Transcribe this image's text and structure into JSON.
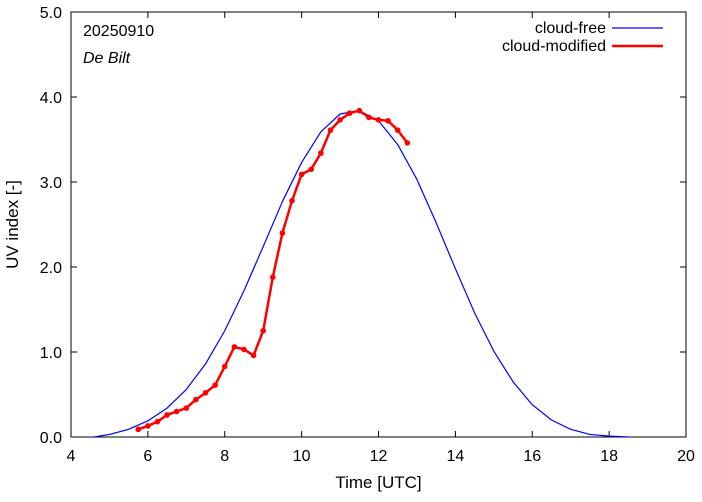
{
  "chart_data": {
    "type": "line",
    "annotation_date": "20250910",
    "annotation_location": "De Bilt",
    "xlabel": "Time  [UTC]",
    "ylabel": "UV index  [-]",
    "xlim": [
      4,
      20
    ],
    "ylim": [
      0.0,
      5.0
    ],
    "x_ticks": [
      4,
      6,
      8,
      10,
      12,
      14,
      16,
      18,
      20
    ],
    "x_tick_labels": [
      "4",
      "6",
      "8",
      "10",
      "12",
      "14",
      "16",
      "18",
      "20"
    ],
    "y_ticks": [
      0,
      1,
      2,
      3,
      4,
      5
    ],
    "y_tick_labels": [
      "0.0",
      "1.0",
      "2.0",
      "3.0",
      "4.0",
      "5.0"
    ],
    "grid": false,
    "legend_position": "top-right",
    "series": [
      {
        "name": "cloud-free",
        "color": "#0000ff",
        "markers": false,
        "x": [
          4.6,
          5.0,
          5.5,
          6.0,
          6.5,
          7.0,
          7.5,
          8.0,
          8.5,
          9.0,
          9.5,
          10.0,
          10.5,
          11.0,
          11.5,
          12.0,
          12.5,
          13.0,
          13.5,
          14.0,
          14.5,
          15.0,
          15.5,
          16.0,
          16.5,
          17.0,
          17.5,
          18.0,
          18.5
        ],
        "y": [
          0.0,
          0.03,
          0.09,
          0.19,
          0.34,
          0.56,
          0.86,
          1.25,
          1.72,
          2.24,
          2.77,
          3.23,
          3.59,
          3.8,
          3.84,
          3.72,
          3.44,
          3.03,
          2.52,
          1.98,
          1.46,
          1.01,
          0.65,
          0.38,
          0.2,
          0.09,
          0.03,
          0.01,
          0.0
        ]
      },
      {
        "name": "cloud-modified",
        "color": "#ff0000",
        "markers": true,
        "x": [
          5.75,
          6.0,
          6.25,
          6.5,
          6.75,
          7.0,
          7.25,
          7.5,
          7.75,
          8.0,
          8.25,
          8.5,
          8.75,
          9.0,
          9.25,
          9.5,
          9.75,
          10.0,
          10.25,
          10.5,
          10.75,
          11.0,
          11.25,
          11.5,
          11.75,
          12.0,
          12.25,
          12.5,
          12.75
        ],
        "y": [
          0.09,
          0.13,
          0.18,
          0.26,
          0.3,
          0.34,
          0.44,
          0.52,
          0.61,
          0.83,
          1.06,
          1.03,
          0.96,
          1.25,
          1.88,
          2.4,
          2.78,
          3.09,
          3.15,
          3.34,
          3.61,
          3.73,
          3.81,
          3.84,
          3.76,
          3.73,
          3.72,
          3.61,
          3.46
        ]
      }
    ]
  }
}
